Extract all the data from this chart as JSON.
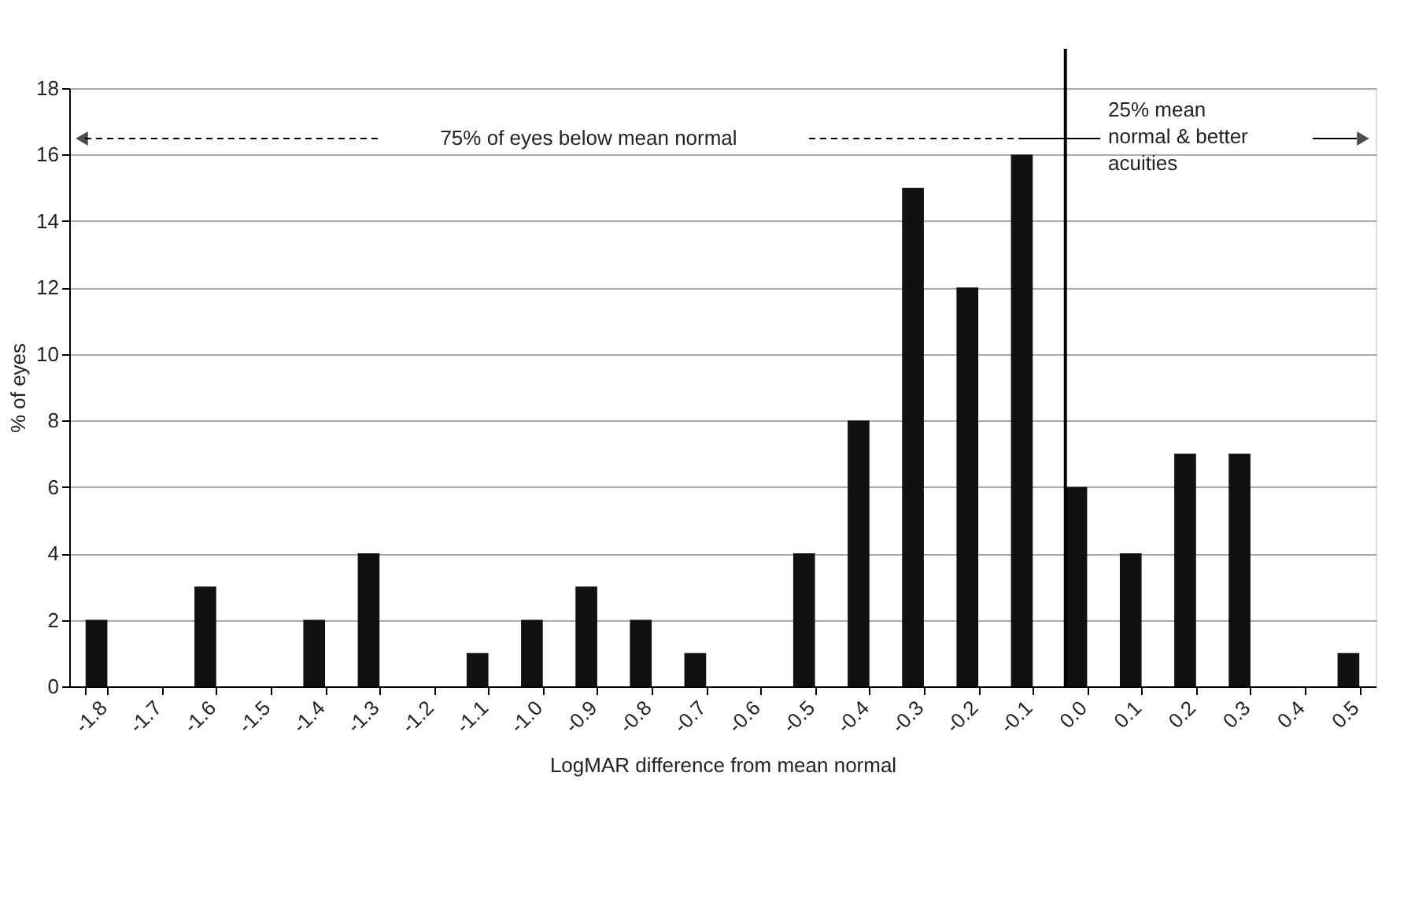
{
  "chart_data": {
    "type": "bar",
    "xlabel": "LogMAR difference from mean normal",
    "ylabel": "% of eyes",
    "categories": [
      "-1.8",
      "-1.7",
      "-1.6",
      "-1.5",
      "-1.4",
      "-1.3",
      "-1.2",
      "-1.1",
      "-1.0",
      "-0.9",
      "-0.8",
      "-0.7",
      "-0.6",
      "-0.5",
      "-0.4",
      "-0.3",
      "-0.2",
      "-0.1",
      "0.0",
      "0.1",
      "0.2",
      "0.3",
      "0.4",
      "0.5"
    ],
    "values": [
      2,
      0,
      3,
      0,
      2,
      4,
      0,
      1,
      2,
      3,
      2,
      1,
      0,
      4,
      8,
      15,
      12,
      16,
      6,
      4,
      7,
      7,
      0,
      1
    ],
    "color": "#111111",
    "ylim": [
      0,
      18
    ],
    "yticks": [
      0,
      2,
      4,
      6,
      8,
      10,
      12,
      14,
      16,
      18
    ],
    "grid": "y",
    "ref_lines": [
      {
        "axis": "x",
        "value": "0.0",
        "color": "#000000"
      }
    ],
    "annotations": [
      "75% of eyes below mean normal",
      "25% mean normal & better acuities"
    ]
  }
}
